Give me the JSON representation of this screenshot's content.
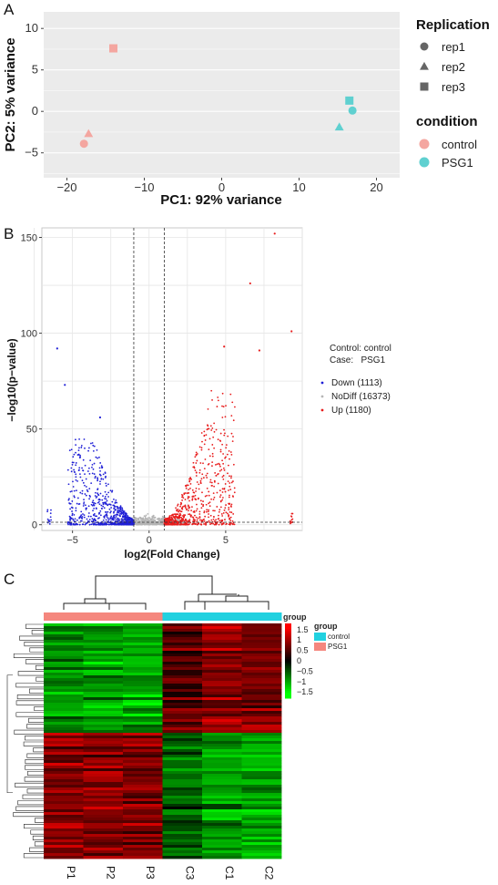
{
  "panel_labels": [
    "A",
    "B",
    "C"
  ],
  "chart_data": [
    {
      "type": "scatter",
      "panel": "A",
      "xlabel": "PC1: 92% variance",
      "ylabel": "PC2: 5% variance",
      "xlim": [
        -23,
        23
      ],
      "ylim": [
        -8,
        12
      ],
      "xticks": [
        -20,
        -10,
        0,
        10,
        20
      ],
      "yticks": [
        -5,
        0,
        5,
        10
      ],
      "grid": true,
      "background": "#ebebeb",
      "legend_placement": "right",
      "legend": {
        "shape_title": "Replication",
        "shape_items": [
          {
            "label": "rep1",
            "shape": "circle"
          },
          {
            "label": "rep2",
            "shape": "triangle"
          },
          {
            "label": "rep3",
            "shape": "square"
          }
        ],
        "color_title": "condition",
        "color_items": [
          {
            "label": "control",
            "color": "#f4a6a0"
          },
          {
            "label": "PSG1",
            "color": "#5fd0d0"
          }
        ]
      },
      "points": [
        {
          "x": -17.8,
          "y": -3.9,
          "shape": "circle",
          "condition": "control"
        },
        {
          "x": -17.2,
          "y": -2.7,
          "shape": "triangle",
          "condition": "control"
        },
        {
          "x": -14.0,
          "y": 7.6,
          "shape": "square",
          "condition": "control"
        },
        {
          "x": 16.9,
          "y": 0.1,
          "shape": "circle",
          "condition": "PSG1"
        },
        {
          "x": 15.2,
          "y": -1.9,
          "shape": "triangle",
          "condition": "PSG1"
        },
        {
          "x": 16.5,
          "y": 1.3,
          "shape": "square",
          "condition": "PSG1"
        }
      ]
    },
    {
      "type": "scatter",
      "panel": "B",
      "xlabel": "log2(Fold Change)",
      "ylabel": "−log10(p−value)",
      "xlim": [
        -7,
        10
      ],
      "ylim": [
        -3,
        155
      ],
      "xticks": [
        -5,
        0,
        5
      ],
      "yticks": [
        0,
        50,
        100,
        150
      ],
      "grid": true,
      "fc_threshold_lines": [
        -1,
        1
      ],
      "pvalue_threshold_line": 1.3,
      "legend_placement": "right",
      "legend_header": [
        "Control: control",
        "Case:   PSG1"
      ],
      "series": [
        {
          "name": "Down (1113)",
          "color": "#1f1fd6",
          "count": 1113,
          "x_range": [
            -6.5,
            -1
          ],
          "max_y": 92
        },
        {
          "name": "NoDiff (16373)",
          "color": "#b5b5b5",
          "count": 16373,
          "x_range": [
            -2.3,
            2.3
          ],
          "max_y": 8
        },
        {
          "name": "Up (1180)",
          "color": "#e81c1c",
          "count": 1180,
          "x_range": [
            1,
            9.5
          ],
          "max_y": 152
        }
      ],
      "highlighted_points": [
        {
          "x": -6.0,
          "y": 92,
          "series": "Down (1113)"
        },
        {
          "x": -5.5,
          "y": 73,
          "series": "Down (1113)"
        },
        {
          "x": -3.2,
          "y": 56,
          "series": "Down (1113)"
        },
        {
          "x": 8.2,
          "y": 152,
          "series": "Up (1180)"
        },
        {
          "x": 6.6,
          "y": 126,
          "series": "Up (1180)"
        },
        {
          "x": 9.3,
          "y": 101,
          "series": "Up (1180)"
        },
        {
          "x": 7.2,
          "y": 91,
          "series": "Up (1180)"
        },
        {
          "x": 4.9,
          "y": 93,
          "series": "Up (1180)"
        }
      ]
    },
    {
      "type": "heatmap",
      "panel": "C",
      "columns": [
        "P1",
        "P2",
        "P3",
        "C3",
        "C1",
        "C2"
      ],
      "column_groups": [
        "PSG1",
        "PSG1",
        "PSG1",
        "control",
        "control",
        "control"
      ],
      "colorbar_ticks": [
        1.5,
        1,
        0.5,
        0,
        -0.5,
        -1,
        -1.5
      ],
      "colorbar_title": "group",
      "color_low": "#00ff00",
      "color_mid": "#000000",
      "color_high": "#ff0000",
      "legend": {
        "title": "group",
        "items": [
          {
            "label": "control",
            "color": "#21d1e0"
          },
          {
            "label": "PSG1",
            "color": "#f5877e"
          }
        ]
      },
      "row_blocks": [
        {
          "fraction": 0.47,
          "values": [
            -0.9,
            -1.0,
            -1.1,
            0.55,
            0.9,
            0.75
          ]
        },
        {
          "fraction": 0.53,
          "values": [
            0.9,
            0.85,
            0.8,
            -0.6,
            -0.95,
            -1.0
          ]
        }
      ]
    }
  ]
}
